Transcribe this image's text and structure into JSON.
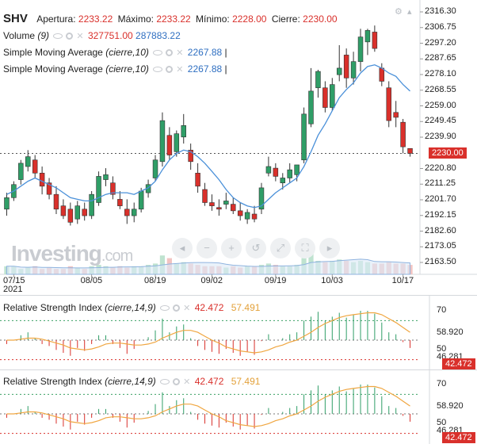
{
  "header": {
    "symbol": "SHV",
    "open_label": "Apertura:",
    "open_value": "2233.22",
    "high_label": "Máximo:",
    "high_value": "2233.22",
    "low_label": "Mínimo:",
    "low_value": "2228.00",
    "close_label": "Cierre:",
    "close_value": "2230.00"
  },
  "indicators": {
    "volume": {
      "name": "Volume",
      "param": "(9)",
      "v1": "327751.00",
      "v2": "287883.22"
    },
    "sma1": {
      "name": "Simple Moving Average",
      "param": "(cierre,10)",
      "value": "2267.88",
      "sep": "|"
    },
    "sma2": {
      "name": "Simple Moving Average",
      "param": "(cierre,10)",
      "value": "2267.88",
      "sep": "|"
    }
  },
  "price_axis": [
    "2316.30",
    "2306.75",
    "2297.20",
    "2287.65",
    "2278.10",
    "2268.55",
    "2259.00",
    "2249.45",
    "2239.90",
    "2220.80",
    "2211.25",
    "2201.70",
    "2192.15",
    "2182.60",
    "2173.05",
    "2163.50"
  ],
  "current_price": "2230.00",
  "date_axis": [
    "07/15",
    "08/05",
    "08/19",
    "09/02",
    "09/19",
    "10/03",
    "10/17"
  ],
  "year_label": "2021",
  "watermark": {
    "brand": "Investing",
    "suffix": ".com"
  },
  "rsi_panels": [
    {
      "name": "Relative Strength Index",
      "param": "(cierre,14,9)",
      "v1": "42.472",
      "v2": "57.491",
      "axis": [
        "70",
        "58.920",
        "50",
        "46.281"
      ],
      "tag": "42.472"
    },
    {
      "name": "Relative Strength Index",
      "param": "(cierre,14,9)",
      "v1": "42.472",
      "v2": "57.491",
      "axis": [
        "70",
        "58.920",
        "50",
        "46.281"
      ],
      "tag": "42.472"
    }
  ],
  "colors": {
    "up": "#2f9e67",
    "down": "#d9302b",
    "sma": "#4a90d9",
    "rsi_signal": "#f0a640"
  },
  "chart_data": {
    "type": "candlestick",
    "ylim": [
      2160,
      2320
    ],
    "candles": [
      {
        "o": 2196,
        "h": 2206,
        "l": 2192,
        "c": 2203
      },
      {
        "o": 2203,
        "h": 2213,
        "l": 2201,
        "c": 2211
      },
      {
        "o": 2214,
        "h": 2226,
        "l": 2211,
        "c": 2224
      },
      {
        "o": 2222,
        "h": 2232,
        "l": 2219,
        "c": 2228
      },
      {
        "o": 2226,
        "h": 2229,
        "l": 2215,
        "c": 2218
      },
      {
        "o": 2218,
        "h": 2222,
        "l": 2205,
        "c": 2210
      },
      {
        "o": 2212,
        "h": 2215,
        "l": 2202,
        "c": 2205
      },
      {
        "o": 2205,
        "h": 2210,
        "l": 2193,
        "c": 2196
      },
      {
        "o": 2198,
        "h": 2202,
        "l": 2190,
        "c": 2192
      },
      {
        "o": 2196,
        "h": 2200,
        "l": 2186,
        "c": 2188
      },
      {
        "o": 2190,
        "h": 2201,
        "l": 2187,
        "c": 2198
      },
      {
        "o": 2196,
        "h": 2200,
        "l": 2189,
        "c": 2192
      },
      {
        "o": 2192,
        "h": 2207,
        "l": 2190,
        "c": 2205
      },
      {
        "o": 2200,
        "h": 2219,
        "l": 2198,
        "c": 2216
      },
      {
        "o": 2214,
        "h": 2221,
        "l": 2210,
        "c": 2217
      },
      {
        "o": 2212,
        "h": 2216,
        "l": 2202,
        "c": 2205
      },
      {
        "o": 2202,
        "h": 2207,
        "l": 2196,
        "c": 2198
      },
      {
        "o": 2196,
        "h": 2202,
        "l": 2187,
        "c": 2192
      },
      {
        "o": 2192,
        "h": 2200,
        "l": 2188,
        "c": 2196
      },
      {
        "o": 2196,
        "h": 2209,
        "l": 2194,
        "c": 2207
      },
      {
        "o": 2206,
        "h": 2214,
        "l": 2203,
        "c": 2211
      },
      {
        "o": 2215,
        "h": 2229,
        "l": 2213,
        "c": 2226
      },
      {
        "o": 2225,
        "h": 2255,
        "l": 2222,
        "c": 2250
      },
      {
        "o": 2241,
        "h": 2246,
        "l": 2226,
        "c": 2229
      },
      {
        "o": 2231,
        "h": 2244,
        "l": 2228,
        "c": 2242
      },
      {
        "o": 2240,
        "h": 2254,
        "l": 2236,
        "c": 2247
      },
      {
        "o": 2232,
        "h": 2236,
        "l": 2220,
        "c": 2225
      },
      {
        "o": 2218,
        "h": 2224,
        "l": 2206,
        "c": 2210
      },
      {
        "o": 2208,
        "h": 2212,
        "l": 2198,
        "c": 2200
      },
      {
        "o": 2200,
        "h": 2205,
        "l": 2195,
        "c": 2198
      },
      {
        "o": 2197,
        "h": 2202,
        "l": 2192,
        "c": 2196
      },
      {
        "o": 2199,
        "h": 2206,
        "l": 2196,
        "c": 2201
      },
      {
        "o": 2199,
        "h": 2203,
        "l": 2193,
        "c": 2195
      },
      {
        "o": 2195,
        "h": 2200,
        "l": 2189,
        "c": 2192
      },
      {
        "o": 2190,
        "h": 2196,
        "l": 2187,
        "c": 2194
      },
      {
        "o": 2193,
        "h": 2198,
        "l": 2188,
        "c": 2190
      },
      {
        "o": 2196,
        "h": 2212,
        "l": 2193,
        "c": 2209
      },
      {
        "o": 2218,
        "h": 2228,
        "l": 2216,
        "c": 2222
      },
      {
        "o": 2221,
        "h": 2224,
        "l": 2213,
        "c": 2216
      },
      {
        "o": 2212,
        "h": 2218,
        "l": 2208,
        "c": 2215
      },
      {
        "o": 2215,
        "h": 2224,
        "l": 2212,
        "c": 2220
      },
      {
        "o": 2217,
        "h": 2222,
        "l": 2213,
        "c": 2223
      },
      {
        "o": 2226,
        "h": 2258,
        "l": 2224,
        "c": 2254
      },
      {
        "o": 2248,
        "h": 2282,
        "l": 2246,
        "c": 2268
      },
      {
        "o": 2270,
        "h": 2281,
        "l": 2264,
        "c": 2280
      },
      {
        "o": 2270,
        "h": 2274,
        "l": 2255,
        "c": 2258
      },
      {
        "o": 2258,
        "h": 2276,
        "l": 2256,
        "c": 2272
      },
      {
        "o": 2278,
        "h": 2296,
        "l": 2274,
        "c": 2282
      },
      {
        "o": 2290,
        "h": 2294,
        "l": 2270,
        "c": 2276
      },
      {
        "o": 2276,
        "h": 2292,
        "l": 2272,
        "c": 2286
      },
      {
        "o": 2286,
        "h": 2306,
        "l": 2280,
        "c": 2301
      },
      {
        "o": 2298,
        "h": 2306,
        "l": 2290,
        "c": 2305
      },
      {
        "o": 2304,
        "h": 2308,
        "l": 2292,
        "c": 2294
      },
      {
        "o": 2282,
        "h": 2285,
        "l": 2271,
        "c": 2274
      },
      {
        "o": 2270,
        "h": 2274,
        "l": 2246,
        "c": 2250
      },
      {
        "o": 2255,
        "h": 2262,
        "l": 2246,
        "c": 2252
      },
      {
        "o": 2249,
        "h": 2251,
        "l": 2230,
        "c": 2234
      },
      {
        "o": 2233,
        "h": 2233,
        "l": 2228,
        "c": 2230
      }
    ],
    "sma": [
      2205,
      2207,
      2210,
      2213,
      2215,
      2213,
      2211,
      2209,
      2206,
      2203,
      2202,
      2201,
      2201,
      2203,
      2205,
      2206,
      2206,
      2206,
      2205,
      2207,
      2209,
      2213,
      2220,
      2226,
      2230,
      2232,
      2231,
      2228,
      2224,
      2219,
      2214,
      2208,
      2203,
      2200,
      2198,
      2197,
      2198,
      2202,
      2206,
      2209,
      2212,
      2215,
      2222,
      2231,
      2241,
      2248,
      2256,
      2264,
      2269,
      2273,
      2279,
      2283,
      2284,
      2282,
      2279,
      2277,
      2272,
      2268
    ],
    "volume": [
      0.3,
      0.3,
      0.2,
      0.25,
      0.3,
      0.2,
      0.25,
      0.2,
      0.2,
      0.3,
      0.25,
      0.2,
      0.3,
      0.35,
      0.3,
      0.25,
      0.3,
      0.25,
      0.3,
      0.3,
      0.35,
      0.4,
      0.7,
      0.6,
      0.4,
      0.45,
      0.4,
      0.35,
      0.3,
      0.3,
      0.3,
      0.25,
      0.3,
      0.25,
      0.3,
      0.3,
      0.35,
      0.4,
      0.35,
      0.3,
      0.3,
      0.35,
      0.6,
      1.0,
      0.5,
      0.45,
      0.5,
      0.55,
      0.5,
      0.45,
      0.5,
      0.45,
      0.4,
      0.4,
      0.45,
      0.4,
      0.4,
      0.35
    ],
    "rsi": [
      46,
      50,
      55,
      58,
      52,
      46,
      44,
      40,
      37,
      34,
      42,
      39,
      46,
      55,
      55,
      46,
      42,
      36,
      41,
      50,
      53,
      60,
      72,
      58,
      64,
      66,
      52,
      44,
      40,
      38,
      36,
      41,
      37,
      34,
      38,
      35,
      49,
      56,
      50,
      52,
      56,
      58,
      70,
      74,
      79,
      70,
      74,
      78,
      73,
      76,
      80,
      80,
      77,
      68,
      58,
      56,
      48,
      42
    ],
    "rsi_signal": [
      50,
      50,
      51,
      52,
      52,
      51,
      49,
      47,
      45,
      42,
      41,
      40,
      41,
      43,
      46,
      47,
      47,
      46,
      45,
      45,
      46,
      48,
      52,
      55,
      58,
      60,
      60,
      58,
      54,
      50,
      47,
      43,
      41,
      39,
      38,
      37,
      38,
      40,
      43,
      45,
      48,
      50,
      54,
      58,
      63,
      67,
      70,
      73,
      75,
      76,
      77,
      78,
      78,
      76,
      72,
      68,
      63,
      58
    ]
  }
}
